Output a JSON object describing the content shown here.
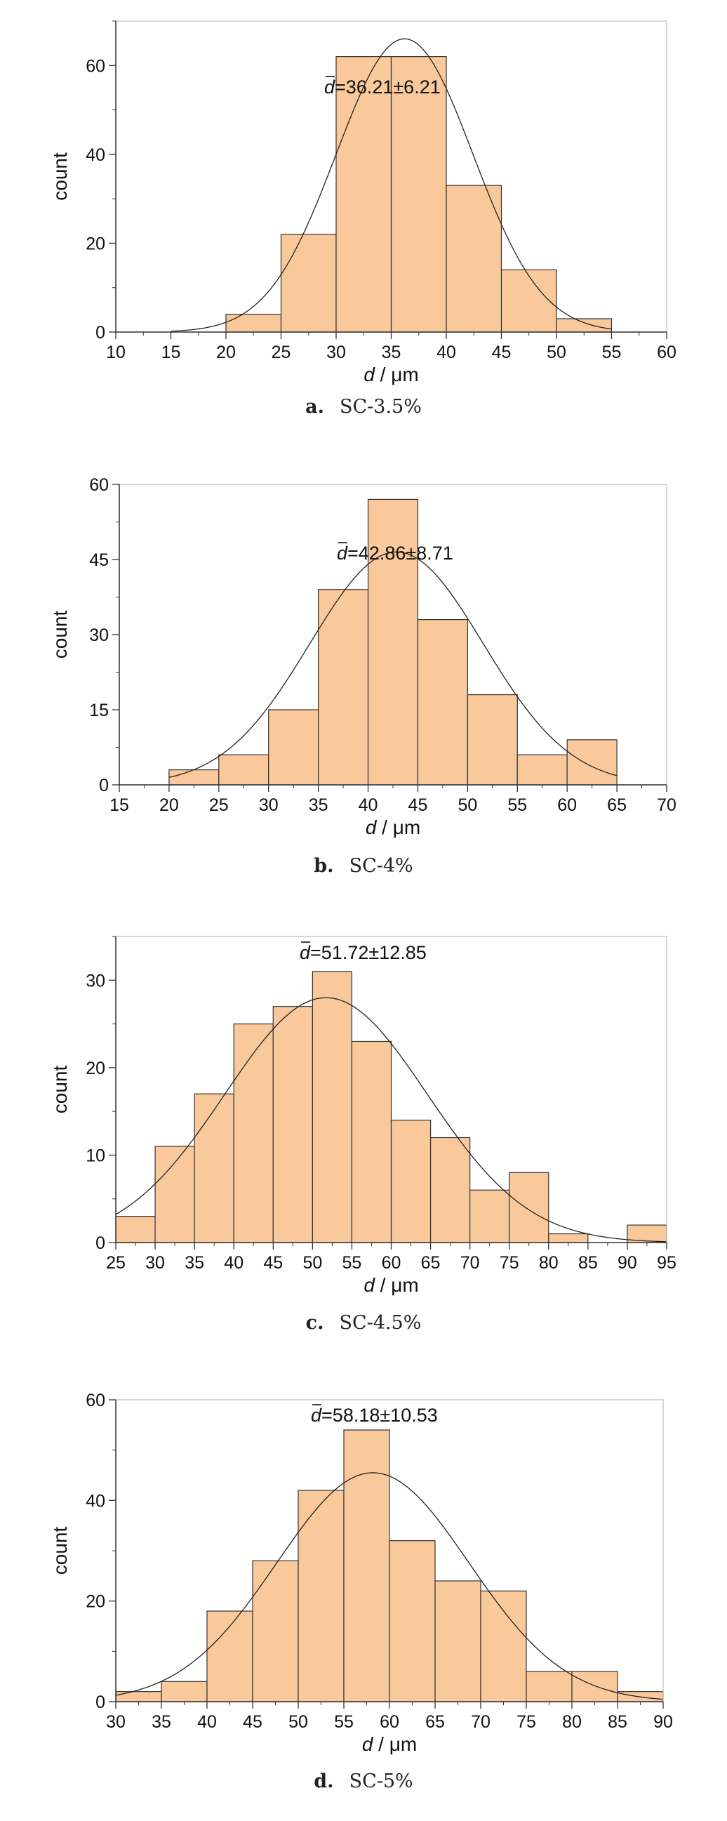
{
  "chart_data": [
    {
      "type": "bar",
      "caption_letter": "a.",
      "caption": "SC-3.5%",
      "annotation": "d=36.21±6.21",
      "annotation_symbol": "d",
      "annotation_value": "=36.21±6.21",
      "xlabel": "d / μm",
      "xlabel_symbol": "d",
      "xlabel_unit": " / μm",
      "ylabel": "count",
      "xlim": [
        10,
        60
      ],
      "ylim": [
        0,
        70
      ],
      "xticks": [
        10,
        15,
        20,
        25,
        30,
        35,
        40,
        45,
        50,
        55,
        60
      ],
      "yticks": [
        0,
        20,
        40,
        60
      ],
      "bin_edges": [
        20,
        25,
        30,
        35,
        40,
        45,
        50,
        55
      ],
      "values": [
        4,
        22,
        62,
        62,
        33,
        14,
        3
      ],
      "fit": {
        "mean": 36.21,
        "sd": 6.21,
        "peak": 66,
        "x_from": 15,
        "x_to": 55
      },
      "grid": false,
      "bar_color": "#f9c89b"
    },
    {
      "type": "bar",
      "caption_letter": "b.",
      "caption": "SC-4%",
      "annotation": "d=42.86±8.71",
      "annotation_symbol": "d",
      "annotation_value": "=42.86±8.71",
      "xlabel": "d / μm",
      "xlabel_symbol": "d",
      "xlabel_unit": " / μm",
      "ylabel": "count",
      "xlim": [
        15,
        70
      ],
      "ylim": [
        0,
        60
      ],
      "xticks": [
        15,
        20,
        25,
        30,
        35,
        40,
        45,
        50,
        55,
        60,
        65,
        70
      ],
      "yticks": [
        0,
        15,
        30,
        45,
        60
      ],
      "bin_edges": [
        20,
        25,
        30,
        35,
        40,
        45,
        50,
        55,
        60,
        65
      ],
      "values": [
        3,
        6,
        15,
        39,
        57,
        33,
        18,
        6,
        9
      ],
      "fit": {
        "mean": 42.86,
        "sd": 8.71,
        "peak": 46.5,
        "x_from": 20,
        "x_to": 65
      },
      "grid": false,
      "bar_color": "#f9c89b"
    },
    {
      "type": "bar",
      "caption_letter": "c.",
      "caption": "SC-4.5%",
      "annotation": "d=51.72±12.85",
      "annotation_symbol": "d",
      "annotation_value": "=51.72±12.85",
      "xlabel": "d / μm",
      "xlabel_symbol": "d",
      "xlabel_unit": " / μm",
      "ylabel": "count",
      "xlim": [
        25,
        95
      ],
      "ylim": [
        0,
        35
      ],
      "xticks": [
        25,
        30,
        35,
        40,
        45,
        50,
        55,
        60,
        65,
        70,
        75,
        80,
        85,
        90,
        95
      ],
      "yticks": [
        0,
        10,
        20,
        30
      ],
      "bin_edges": [
        25,
        30,
        35,
        40,
        45,
        50,
        55,
        60,
        65,
        70,
        75,
        80,
        85,
        90,
        95
      ],
      "values": [
        3,
        11,
        17,
        25,
        27,
        31,
        23,
        14,
        12,
        6,
        8,
        1,
        0,
        2
      ],
      "fit": {
        "mean": 51.72,
        "sd": 12.85,
        "peak": 28,
        "x_from": 25,
        "x_to": 95
      },
      "grid": false,
      "bar_color": "#f9c89b"
    },
    {
      "type": "bar",
      "caption_letter": "d.",
      "caption": "SC-5%",
      "annotation": "d=58.18±10.53",
      "annotation_symbol": "d",
      "annotation_value": "=58.18±10.53",
      "xlabel": "d / μm",
      "xlabel_symbol": "d",
      "xlabel_unit": " / μm",
      "ylabel": "count",
      "xlim": [
        30,
        90
      ],
      "ylim": [
        0,
        60
      ],
      "xticks": [
        30,
        35,
        40,
        45,
        50,
        55,
        60,
        65,
        70,
        75,
        80,
        85,
        90
      ],
      "yticks": [
        0,
        20,
        40,
        60
      ],
      "bin_edges": [
        30,
        35,
        40,
        45,
        50,
        55,
        60,
        65,
        70,
        75,
        80,
        85,
        90
      ],
      "values": [
        2,
        4,
        18,
        28,
        42,
        54,
        32,
        24,
        22,
        6,
        6,
        2
      ],
      "fit": {
        "mean": 58.18,
        "sd": 10.53,
        "peak": 45.5,
        "x_from": 30,
        "x_to": 90
      },
      "grid": false,
      "bar_color": "#f9c89b"
    }
  ]
}
